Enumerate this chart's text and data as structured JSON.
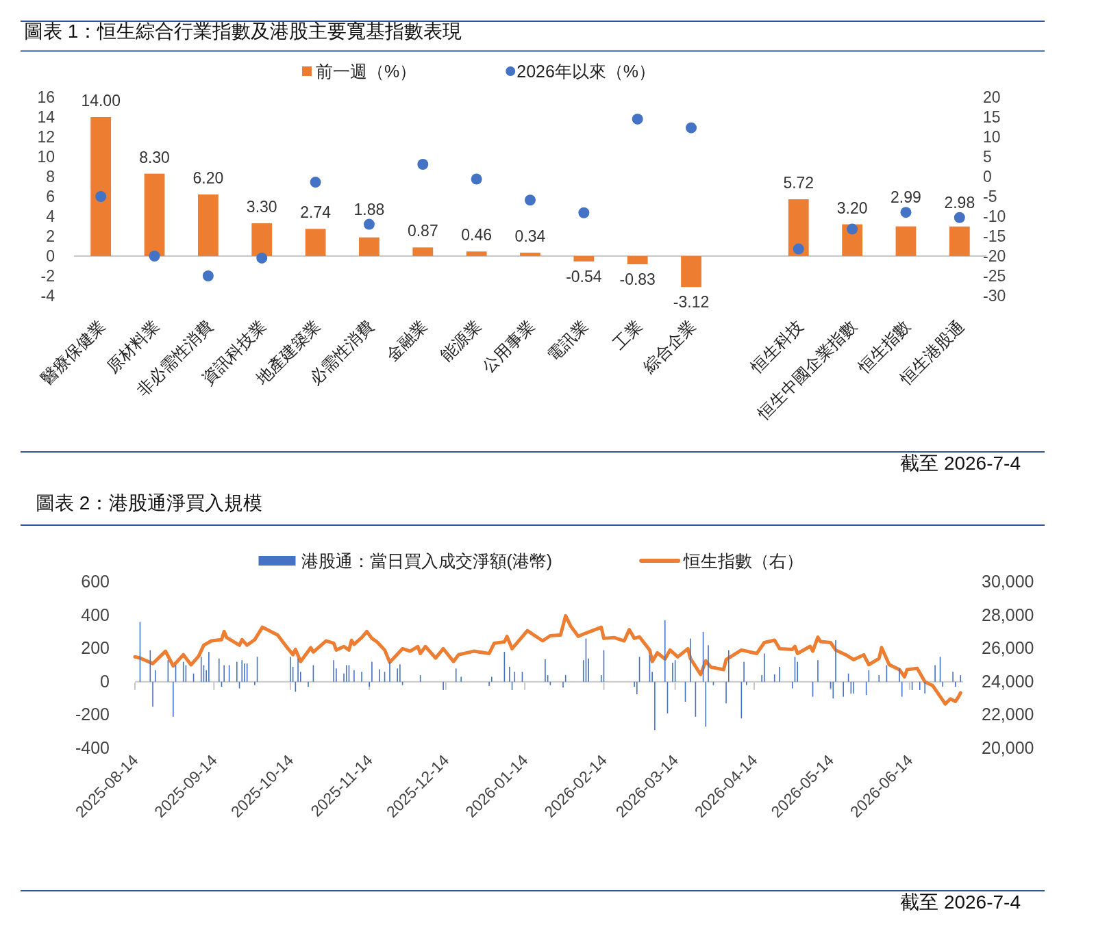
{
  "chart_data": [
    {
      "type": "bar",
      "title": "圖表 1：恒生綜合行業指數及港股主要寬基指數表現",
      "annotations": [
        "截至 2026-7-4"
      ],
      "categories": [
        "醫療保健業",
        "原材料業",
        "非必需性消費",
        "資訊科技業",
        "地產建築業",
        "必需性消費",
        "金融業",
        "能源業",
        "公用事業",
        "電訊業",
        "工業",
        "綜合企業",
        null,
        "恒生科技",
        "恒生中國企業指數",
        "恒生指數",
        "恒生港股通"
      ],
      "series": [
        {
          "name": "前一週（%）",
          "color": "#ed7d31",
          "values": [
            14.0,
            8.3,
            6.2,
            3.3,
            2.74,
            1.88,
            0.87,
            0.46,
            0.34,
            -0.54,
            -0.83,
            -3.12,
            null,
            5.72,
            3.2,
            2.99,
            2.98
          ],
          "value_labels": [
            "14.00",
            "8.30",
            "6.20",
            "3.30",
            "2.74",
            "1.88",
            "0.87",
            "0.46",
            "0.34",
            "-0.54",
            "-0.83",
            "-3.12",
            null,
            "5.72",
            "3.20",
            "2.99",
            "2.98"
          ]
        },
        {
          "name": "2026年以來（%）",
          "type": "scatter",
          "axis": "y2",
          "marker": "circle",
          "color": "#4472c4",
          "values": [
            -5,
            -20,
            -25,
            -20.5,
            -1.4,
            -12,
            3.1,
            -0.6,
            -5.9,
            -9.1,
            14.5,
            12.3,
            null,
            -18.2,
            -13.2,
            -9,
            -10.3
          ]
        }
      ],
      "ylim": [
        -4,
        16
      ],
      "yticks": [
        -4,
        -2,
        0,
        2,
        4,
        6,
        8,
        10,
        12,
        14,
        16
      ],
      "ref_lines": [
        {
          "axis": "y",
          "value": 0,
          "color": "#c8c8c8"
        }
      ],
      "y2lim": [
        -30,
        20
      ],
      "y2ticks": [
        -30,
        -25,
        -20,
        -15,
        -10,
        -5,
        0,
        5,
        10,
        15,
        20
      ],
      "grid": false,
      "legend": "top"
    },
    {
      "type": "bar",
      "title": "圖表 2：港股通淨買入規模",
      "annotations": [
        "截至 2026-7-4"
      ],
      "series": [
        {
          "name": "港股通：當日買入成交淨額(港幣)",
          "color": "#4472c4",
          "x": [
            "2025-08-16",
            "2025-08-20",
            "2025-08-21",
            "2025-08-22",
            "2025-08-27",
            "2025-08-29",
            "2025-08-30",
            "2025-09-02",
            "2025-09-03",
            "2025-09-06",
            "2025-09-09",
            "2025-09-10",
            "2025-09-11",
            "2025-09-12",
            "2025-09-16",
            "2025-09-17",
            "2025-09-18",
            "2025-09-20",
            "2025-09-23",
            "2025-09-24",
            "2025-09-25",
            "2025-09-26",
            "2025-09-27",
            "2025-09-30",
            "2025-10-01",
            "2025-10-14",
            "2025-10-15",
            "2025-10-16",
            "2025-10-17",
            "2025-10-18",
            "2025-10-21",
            "2025-10-23",
            "2025-10-31",
            "2025-11-01",
            "2025-11-04",
            "2025-11-05",
            "2025-11-06",
            "2025-11-08",
            "2025-11-11",
            "2025-11-14",
            "2025-11-15",
            "2025-11-18",
            "2025-11-20",
            "2025-11-22",
            "2025-11-25",
            "2025-11-26",
            "2025-11-27",
            "2025-12-04",
            "2025-12-13",
            "2025-12-18",
            "2025-12-20",
            "2025-12-31",
            "2026-01-01",
            "2026-01-06",
            "2026-01-08",
            "2026-01-09",
            "2026-01-10",
            "2026-01-13",
            "2026-01-22",
            "2026-01-23",
            "2026-01-24",
            "2026-01-29",
            "2026-01-30",
            "2026-02-06",
            "2026-02-07",
            "2026-02-08",
            "2026-02-13",
            "2026-02-14",
            "2026-02-26",
            "2026-02-27",
            "2026-02-28",
            "2026-03-04",
            "2026-03-05",
            "2026-03-06",
            "2026-03-10",
            "2026-03-11",
            "2026-03-13",
            "2026-03-14",
            "2026-03-18",
            "2026-03-20",
            "2026-03-22",
            "2026-03-25",
            "2026-03-26",
            "2026-03-27",
            "2026-03-29",
            "2026-04-03",
            "2026-04-04",
            "2026-04-09",
            "2026-04-10",
            "2026-04-11",
            "2026-04-17",
            "2026-04-18",
            "2026-04-22",
            "2026-04-24",
            "2026-04-29",
            "2026-04-30",
            "2026-05-01",
            "2026-05-07",
            "2026-05-09",
            "2026-05-14",
            "2026-05-15",
            "2026-05-16",
            "2026-05-19",
            "2026-05-21",
            "2026-05-22",
            "2026-05-23",
            "2026-05-28",
            "2026-05-29",
            "2026-06-02",
            "2026-06-05",
            "2026-06-10",
            "2026-06-11",
            "2026-06-15",
            "2026-06-18",
            "2026-06-20",
            "2026-06-24",
            "2026-06-26",
            "2026-06-27",
            "2026-07-01",
            "2026-07-02",
            "2026-07-04"
          ],
          "values": [
            360,
            190,
            -150,
            70,
            130,
            -210,
            100,
            120,
            100,
            50,
            150,
            100,
            70,
            180,
            140,
            -30,
            100,
            100,
            120,
            -40,
            130,
            110,
            110,
            -20,
            150,
            150,
            90,
            -60,
            140,
            60,
            -30,
            100,
            130,
            80,
            50,
            100,
            100,
            70,
            60,
            -30,
            120,
            75,
            60,
            120,
            80,
            105,
            -20,
            40,
            -50,
            80,
            30,
            -25,
            30,
            180,
            90,
            -50,
            60,
            60,
            135,
            40,
            -20,
            -35,
            40,
            130,
            260,
            140,
            40,
            190,
            -30,
            -75,
            150,
            160,
            60,
            -290,
            370,
            -190,
            115,
            130,
            -120,
            260,
            -210,
            300,
            -270,
            220,
            -20,
            -130,
            190,
            -220,
            120,
            -20,
            40,
            170,
            45,
            90,
            -40,
            150,
            120,
            -90,
            130,
            -40,
            -100,
            250,
            -90,
            50,
            -70,
            -70,
            -80,
            70,
            40,
            100,
            80,
            -90,
            -50,
            -50,
            -70,
            100,
            150,
            -30,
            60,
            -30,
            40
          ]
        },
        {
          "name": "恒生指數（右）",
          "type": "line",
          "axis": "y2",
          "color": "#ed7d31",
          "x": [
            "2025-08-14",
            "2025-08-16",
            "2025-08-21",
            "2025-08-26",
            "2025-08-29",
            "2025-09-02",
            "2025-09-05",
            "2025-09-08",
            "2025-09-10",
            "2025-09-13",
            "2025-09-17",
            "2025-09-18",
            "2025-09-19",
            "2025-09-24",
            "2025-09-25",
            "2025-09-27",
            "2025-09-30",
            "2025-10-03",
            "2025-10-09",
            "2025-10-12",
            "2025-10-15",
            "2025-10-16",
            "2025-10-18",
            "2025-10-22",
            "2025-10-23",
            "2025-10-28",
            "2025-10-31",
            "2025-11-01",
            "2025-11-04",
            "2025-11-06",
            "2025-11-07",
            "2025-11-08",
            "2025-11-11",
            "2025-11-13",
            "2025-11-15",
            "2025-11-17",
            "2025-11-20",
            "2025-11-22",
            "2025-11-27",
            "2025-11-30",
            "2025-12-03",
            "2025-12-04",
            "2025-12-06",
            "2025-12-10",
            "2025-12-13",
            "2025-12-17",
            "2025-12-19",
            "2025-12-25",
            "2025-12-31",
            "2026-01-02",
            "2026-01-06",
            "2026-01-07",
            "2026-01-09",
            "2026-01-15",
            "2026-01-21",
            "2026-01-24",
            "2026-01-28",
            "2026-01-30",
            "2026-02-01",
            "2026-02-04",
            "2026-02-06",
            "2026-02-13",
            "2026-02-14",
            "2026-02-18",
            "2026-02-22",
            "2026-02-24",
            "2026-02-26",
            "2026-02-28",
            "2026-03-04",
            "2026-03-05",
            "2026-03-07",
            "2026-03-10",
            "2026-03-12",
            "2026-03-15",
            "2026-03-19",
            "2026-03-20",
            "2026-03-24",
            "2026-03-26",
            "2026-03-28",
            "2026-04-02",
            "2026-04-03",
            "2026-04-09",
            "2026-04-15",
            "2026-04-18",
            "2026-04-22",
            "2026-04-24",
            "2026-04-29",
            "2026-04-30",
            "2026-05-01",
            "2026-05-06",
            "2026-05-07",
            "2026-05-09",
            "2026-05-10",
            "2026-05-14",
            "2026-05-16",
            "2026-05-20",
            "2026-05-23",
            "2026-05-27",
            "2026-05-29",
            "2026-06-02",
            "2026-06-03",
            "2026-06-06",
            "2026-06-10",
            "2026-06-12",
            "2026-06-13",
            "2026-06-17",
            "2026-06-20",
            "2026-06-23",
            "2026-06-25",
            "2026-06-28",
            "2026-06-30",
            "2026-07-02",
            "2026-07-03",
            "2026-07-04"
          ],
          "values": [
            25500,
            25430,
            25090,
            25840,
            24960,
            25630,
            25020,
            25540,
            26200,
            26460,
            26530,
            27020,
            26660,
            26200,
            26530,
            26200,
            26530,
            27280,
            26810,
            26200,
            25630,
            25950,
            25220,
            26050,
            25790,
            26460,
            26320,
            25910,
            26120,
            25910,
            26490,
            26250,
            26660,
            27020,
            26610,
            26400,
            25910,
            25170,
            25990,
            25840,
            26120,
            25700,
            26120,
            25430,
            25990,
            25220,
            25630,
            25840,
            25700,
            26320,
            26400,
            26730,
            25990,
            27070,
            26460,
            26770,
            26810,
            27970,
            27350,
            26730,
            26870,
            27280,
            26610,
            26660,
            26460,
            27140,
            26610,
            26700,
            25910,
            25220,
            25740,
            25370,
            25910,
            25500,
            25990,
            25400,
            24440,
            25250,
            24880,
            24730,
            25330,
            25910,
            25700,
            26360,
            26500,
            25990,
            25950,
            26130,
            25700,
            26130,
            25840,
            26680,
            26420,
            26360,
            25910,
            25620,
            25330,
            25620,
            25030,
            25400,
            26060,
            25030,
            24730,
            24300,
            24730,
            24810,
            24000,
            23780,
            23340,
            22670,
            22970,
            22820,
            23050,
            23340
          ]
        }
      ],
      "xlim": [
        "2025-08-14",
        "2026-07-05"
      ],
      "xticks": [
        "2025-08-14",
        "2025-09-14",
        "2025-10-14",
        "2025-11-14",
        "2025-12-14",
        "2026-01-14",
        "2026-02-14",
        "2026-03-14",
        "2026-04-14",
        "2026-05-14",
        "2026-06-14"
      ],
      "ylim": [
        -400,
        600
      ],
      "yticks": [
        -400,
        -200,
        0,
        200,
        400,
        600
      ],
      "ref_lines": [
        {
          "axis": "y",
          "value": 0,
          "color": "#c8c8c8"
        }
      ],
      "y2lim": [
        20000,
        30000
      ],
      "y2ticks": [
        {
          "value": 20000,
          "label": "20,000"
        },
        {
          "value": 22000,
          "label": "22,000"
        },
        {
          "value": 24000,
          "label": "24,000"
        },
        {
          "value": 26000,
          "label": "26,000"
        },
        {
          "value": 28000,
          "label": "28,000"
        },
        {
          "value": 30000,
          "label": "30,000"
        }
      ],
      "grid": false,
      "legend": "top"
    }
  ]
}
